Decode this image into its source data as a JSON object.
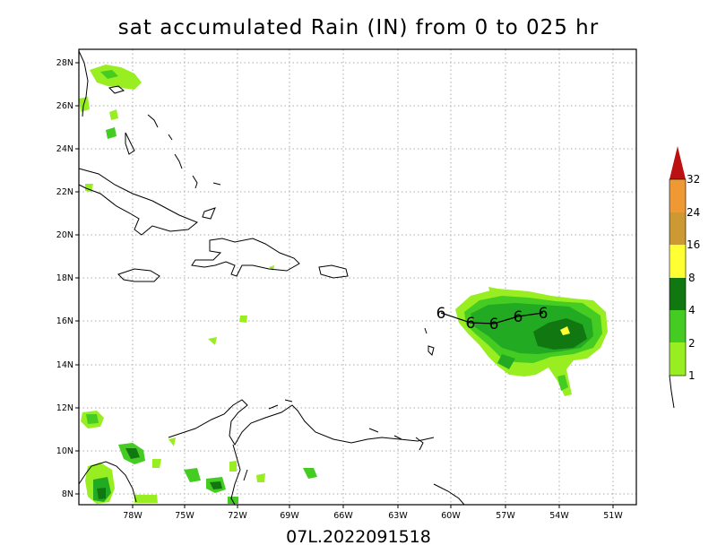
{
  "title": "sat accumulated Rain (IN) from 0 to 025 hr",
  "storm_label": "07L.2022091518",
  "lat_labels": [
    "28N",
    "26N",
    "24N",
    "22N",
    "20N",
    "18N",
    "16N",
    "14N",
    "12N",
    "10N",
    "8N"
  ],
  "lon_labels": [
    "78W",
    "75W",
    "72W",
    "69W",
    "66W",
    "63W",
    "60W",
    "57W",
    "54W",
    "51W"
  ],
  "colorbar": {
    "labels": [
      "1",
      "2",
      "4",
      "8",
      "16",
      "24",
      "32"
    ],
    "colors": [
      "#99ee22",
      "#44cc22",
      "#22aa22",
      "#117711",
      "#ffff33",
      "#cc9933",
      "#ee9933",
      "#bb1111"
    ]
  },
  "track_symbol": "6"
}
